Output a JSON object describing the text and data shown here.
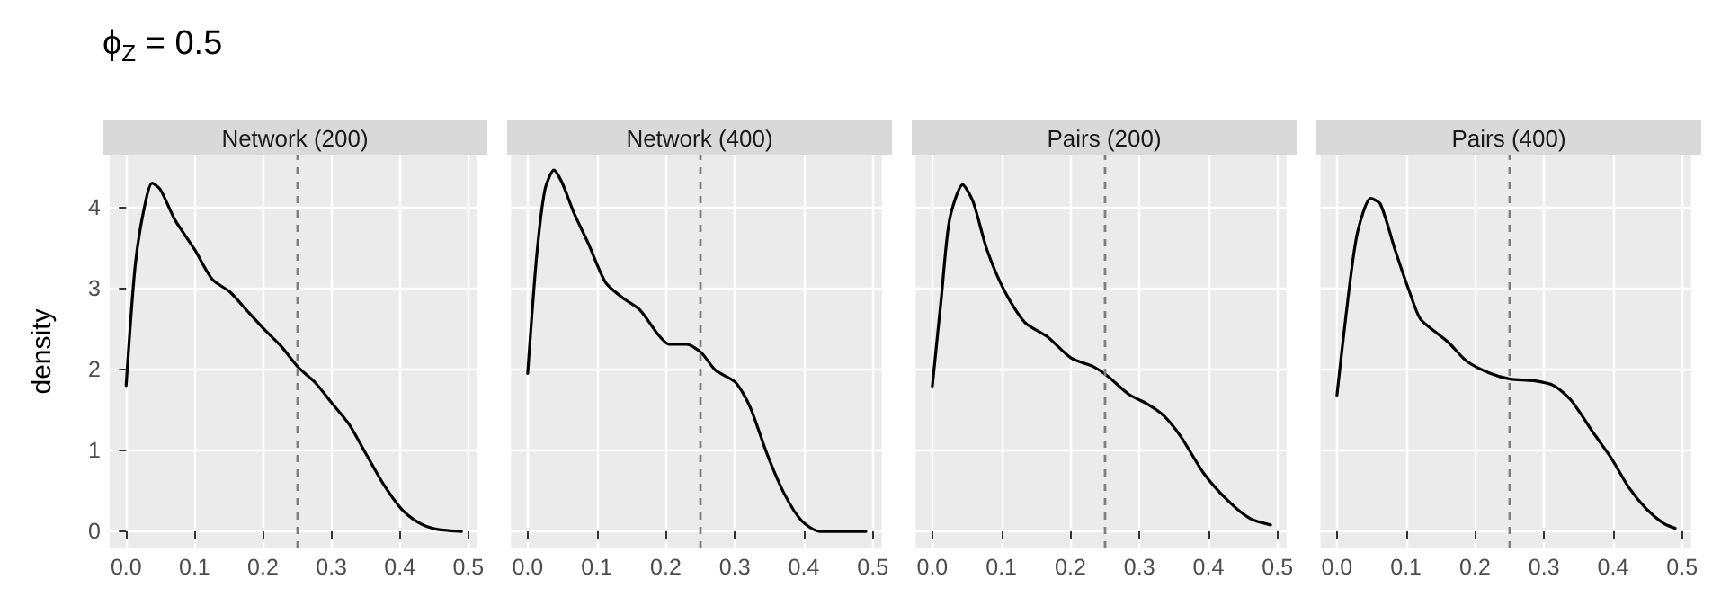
{
  "chart_data": [
    {
      "type": "line",
      "title": "ϕ$_{Z}$ = 0.5",
      "subtitle": "Network (200)",
      "ylabel": "density",
      "grid": true,
      "xlim": [
        -0.024,
        0.513
      ],
      "xticks": [
        {
          "value": 0,
          "label": "0.0"
        },
        {
          "value": 0.1,
          "label": "0.1"
        },
        {
          "value": 0.2,
          "label": "0.2"
        },
        {
          "value": 0.3,
          "label": "0.3"
        },
        {
          "value": 0.4,
          "label": "0.4"
        },
        {
          "value": 0.5,
          "label": "0.5"
        }
      ],
      "ylim": [
        -0.21,
        4.65
      ],
      "yticks": [
        0,
        1,
        2,
        3,
        4
      ],
      "color": "#000000",
      "x": [
        0,
        0.013,
        0.025,
        0.038,
        0.05,
        0.071,
        0.1,
        0.126,
        0.151,
        0.176,
        0.2,
        0.226,
        0.251,
        0.276,
        0.301,
        0.326,
        0.351,
        0.377,
        0.402,
        0.427,
        0.452,
        0.49
      ],
      "values": [
        1.8,
        3.26,
        3.93,
        4.3,
        4.22,
        3.85,
        3.48,
        3.11,
        2.96,
        2.73,
        2.51,
        2.29,
        2.03,
        1.84,
        1.58,
        1.32,
        0.95,
        0.57,
        0.28,
        0.11,
        0.03,
        0
      ],
      "ref_lines": [
        {
          "axis": "x",
          "value": 0.25,
          "color": "#7f7f7f",
          "line_style": "dashed"
        }
      ]
    },
    {
      "type": "line",
      "subtitle": "Network (400)",
      "grid": true,
      "tick_labels": "x",
      "xlim": [
        -0.024,
        0.513
      ],
      "xticks": [
        {
          "value": 0,
          "label": "0.0"
        },
        {
          "value": 0.1,
          "label": "0.1"
        },
        {
          "value": 0.2,
          "label": "0.2"
        },
        {
          "value": 0.3,
          "label": "0.3"
        },
        {
          "value": 0.4,
          "label": "0.4"
        },
        {
          "value": 0.5,
          "label": "0.5"
        }
      ],
      "ylim": [
        -0.21,
        4.65
      ],
      "yticks": [
        0,
        1,
        2,
        3,
        4
      ],
      "color": "#000000",
      "x": [
        0,
        0.013,
        0.025,
        0.038,
        0.05,
        0.067,
        0.088,
        0.113,
        0.138,
        0.163,
        0.188,
        0.205,
        0.23,
        0.251,
        0.272,
        0.301,
        0.322,
        0.347,
        0.372,
        0.397,
        0.423,
        0.456,
        0.49
      ],
      "values": [
        1.95,
        3.4,
        4.22,
        4.46,
        4.3,
        3.93,
        3.55,
        3.07,
        2.88,
        2.73,
        2.44,
        2.31,
        2.31,
        2.21,
        1.99,
        1.84,
        1.54,
        0.95,
        0.46,
        0.13,
        0,
        0,
        0
      ],
      "ref_lines": [
        {
          "axis": "x",
          "value": 0.25,
          "color": "#7f7f7f",
          "line_style": "dashed"
        }
      ]
    },
    {
      "type": "line",
      "subtitle": "Pairs (200)",
      "grid": true,
      "tick_labels": "x",
      "xlim": [
        -0.024,
        0.513
      ],
      "xticks": [
        {
          "value": 0,
          "label": "0.0"
        },
        {
          "value": 0.1,
          "label": "0.1"
        },
        {
          "value": 0.2,
          "label": "0.2"
        },
        {
          "value": 0.3,
          "label": "0.3"
        },
        {
          "value": 0.4,
          "label": "0.4"
        },
        {
          "value": 0.5,
          "label": "0.5"
        }
      ],
      "ylim": [
        -0.21,
        4.65
      ],
      "yticks": [
        0,
        1,
        2,
        3,
        4
      ],
      "color": "#000000",
      "x": [
        0,
        0.013,
        0.025,
        0.044,
        0.059,
        0.079,
        0.105,
        0.134,
        0.167,
        0.201,
        0.234,
        0.255,
        0.285,
        0.31,
        0.335,
        0.36,
        0.393,
        0.427,
        0.46,
        0.49
      ],
      "values": [
        1.79,
        2.88,
        3.85,
        4.28,
        4.07,
        3.48,
        2.96,
        2.58,
        2.4,
        2.14,
        2.03,
        1.91,
        1.69,
        1.58,
        1.43,
        1.17,
        0.72,
        0.39,
        0.16,
        0.08
      ],
      "ref_lines": [
        {
          "axis": "x",
          "value": 0.25,
          "color": "#7f7f7f",
          "line_style": "dashed"
        }
      ]
    },
    {
      "type": "line",
      "subtitle": "Pairs (400)",
      "grid": true,
      "tick_labels": "x",
      "xlim": [
        -0.024,
        0.513
      ],
      "xticks": [
        {
          "value": 0,
          "label": "0.0"
        },
        {
          "value": 0.1,
          "label": "0.1"
        },
        {
          "value": 0.2,
          "label": "0.2"
        },
        {
          "value": 0.3,
          "label": "0.3"
        },
        {
          "value": 0.4,
          "label": "0.4"
        },
        {
          "value": 0.5,
          "label": "0.5"
        }
      ],
      "ylim": [
        -0.21,
        4.65
      ],
      "yticks": [
        0,
        1,
        2,
        3,
        4
      ],
      "color": "#000000",
      "x": [
        0,
        0.013,
        0.029,
        0.049,
        0.063,
        0.084,
        0.105,
        0.121,
        0.146,
        0.163,
        0.188,
        0.222,
        0.251,
        0.285,
        0.314,
        0.339,
        0.372,
        0.397,
        0.423,
        0.448,
        0.473,
        0.49
      ],
      "values": [
        1.68,
        2.66,
        3.66,
        4.11,
        4.04,
        3.48,
        2.96,
        2.62,
        2.44,
        2.32,
        2.1,
        1.95,
        1.88,
        1.86,
        1.8,
        1.62,
        1.21,
        0.91,
        0.54,
        0.28,
        0.1,
        0.04
      ],
      "ref_lines": [
        {
          "axis": "x",
          "value": 0.25,
          "color": "#7f7f7f",
          "line_style": "dashed"
        }
      ]
    }
  ]
}
